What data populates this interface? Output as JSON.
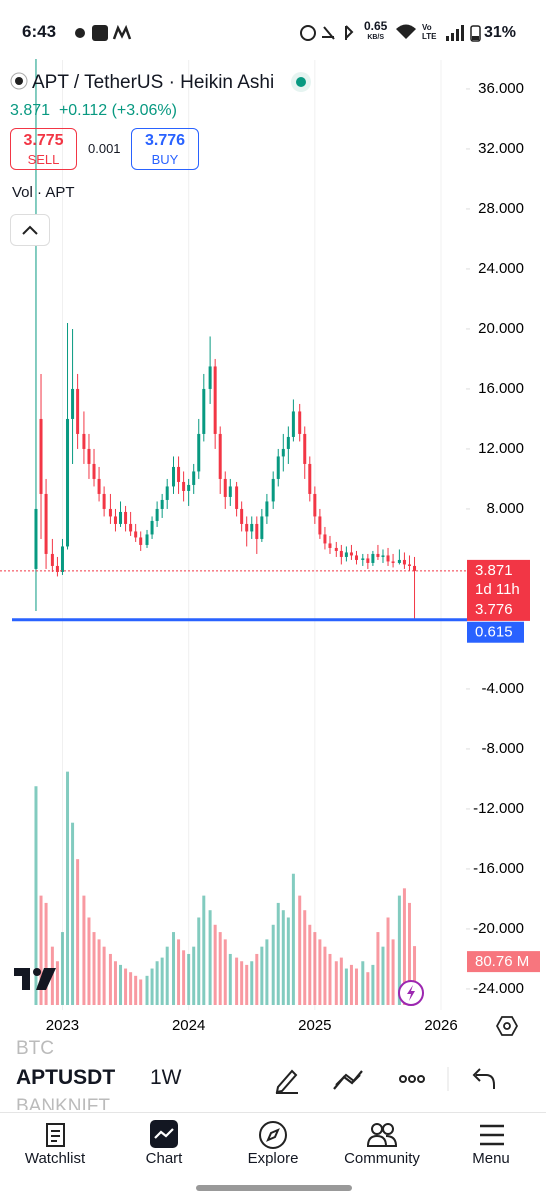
{
  "status_bar": {
    "time": "6:43",
    "speed": "0.65",
    "speed_unit": "KB/S",
    "network": "Vo LTE",
    "battery": "31%"
  },
  "header": {
    "symbol": "APT / TetherUS · Heikin Ashi",
    "change": "+0.112 (+3.06%)",
    "sell": {
      "price": "3.775",
      "label": "SELL"
    },
    "spread": "0.001",
    "buy": {
      "price": "3.776",
      "label": "BUY"
    },
    "volume_indicator": "Vol · APT",
    "countdown": "1d 11h"
  },
  "chart_data": {
    "type": "candlestick",
    "x": [
      2022.79,
      2022.83,
      2022.87,
      2022.92,
      2022.96,
      2023.0,
      2023.04,
      2023.08,
      2023.12,
      2023.17,
      2023.21,
      2023.25,
      2023.29,
      2023.33,
      2023.38,
      2023.42,
      2023.46,
      2023.5,
      2023.54,
      2023.58,
      2023.62,
      2023.67,
      2023.71,
      2023.75,
      2023.79,
      2023.83,
      2023.88,
      2023.92,
      2023.96,
      2024.0,
      2024.04,
      2024.08,
      2024.12,
      2024.17,
      2024.21,
      2024.25,
      2024.29,
      2024.33,
      2024.38,
      2024.42,
      2024.46,
      2024.5,
      2024.54,
      2024.58,
      2024.62,
      2024.67,
      2024.71,
      2024.75,
      2024.79,
      2024.83,
      2024.88,
      2024.92,
      2024.96,
      2025.0,
      2025.04,
      2025.08,
      2025.12,
      2025.17,
      2025.21,
      2025.25,
      2025.29,
      2025.33,
      2025.38,
      2025.42,
      2025.46,
      2025.5,
      2025.54,
      2025.58,
      2025.62,
      2025.67,
      2025.71,
      2025.75,
      2025.79
    ],
    "open": [
      4,
      14,
      9,
      5,
      4.2,
      3.8,
      5.5,
      14,
      16,
      13,
      12,
      11,
      10,
      9,
      8,
      7.5,
      7,
      7.8,
      7,
      6.5,
      6.1,
      5.6,
      6.3,
      7.2,
      8,
      8.6,
      9.5,
      10.8,
      9.8,
      9.2,
      9.6,
      10.5,
      13,
      16,
      17.5,
      13,
      10,
      8.8,
      9.5,
      8,
      7,
      6.5,
      7,
      6,
      7.5,
      8.5,
      10,
      11.5,
      12,
      12.8,
      14.5,
      13,
      11,
      9,
      7.5,
      6.3,
      5.7,
      5.4,
      5.2,
      4.8,
      5.1,
      4.9,
      4.6,
      4.7,
      4.4,
      5,
      4.8,
      4.9,
      4.5,
      4.4,
      4.6,
      4.3,
      4.2
    ],
    "high": [
      38,
      17,
      10,
      6,
      4.8,
      6,
      20.4,
      20,
      17,
      14.5,
      13,
      12,
      10.8,
      9.5,
      9,
      8,
      8.5,
      8.2,
      7.8,
      7,
      6.5,
      6.6,
      7.5,
      8.5,
      9,
      10,
      11.5,
      11.5,
      10.5,
      10,
      11,
      14,
      17,
      19.5,
      18,
      13.5,
      10.5,
      10,
      9.8,
      8.5,
      7.5,
      7.5,
      7.5,
      8,
      9,
      10.5,
      12,
      13,
      13.5,
      15.3,
      15,
      13.5,
      11.5,
      9.5,
      8,
      6.8,
      6.2,
      5.8,
      5.6,
      5.5,
      5.6,
      5.2,
      5,
      5,
      5.2,
      5.6,
      5.3,
      5.4,
      5,
      5.3,
      5.1,
      4.9,
      4.8
    ],
    "low": [
      1.2,
      6,
      4,
      3.8,
      3.5,
      3.6,
      5.3,
      11,
      12,
      11,
      10,
      9.5,
      8.5,
      7.5,
      7,
      6.5,
      6.8,
      6.5,
      6.2,
      5.8,
      5.2,
      5.4,
      6,
      6.8,
      7.4,
      8,
      9,
      9,
      8.5,
      8.2,
      9,
      10,
      12.5,
      15,
      12,
      9,
      8,
      8.2,
      7.5,
      6.5,
      5.5,
      6,
      5,
      5.8,
      7,
      8,
      9.5,
      10.5,
      11,
      12.5,
      12.5,
      10,
      8.5,
      7,
      6,
      5.3,
      5,
      4.8,
      4.3,
      4.5,
      4.6,
      4.3,
      4.2,
      4,
      4.2,
      4.6,
      4.4,
      4.2,
      4.1,
      4.3,
      4,
      3.9,
      0.7
    ],
    "close": [
      8,
      9,
      5,
      4.2,
      3.8,
      5.5,
      14,
      16,
      13,
      12,
      11,
      10,
      9,
      8,
      7.5,
      7,
      7.8,
      7,
      6.5,
      6.1,
      5.6,
      6.3,
      7.2,
      8,
      8.6,
      9.5,
      10.8,
      9.8,
      9.2,
      9.6,
      10.5,
      13,
      16,
      17.5,
      13,
      10,
      8.8,
      9.5,
      8,
      7,
      6.5,
      7,
      6,
      7.5,
      8.5,
      10,
      11.5,
      12,
      12.8,
      14.5,
      13,
      11,
      9,
      7.5,
      6.3,
      5.7,
      5.4,
      5.2,
      4.8,
      5.1,
      4.9,
      4.6,
      4.7,
      4.4,
      5,
      4.8,
      4.9,
      4.5,
      4.4,
      4.6,
      4.3,
      4.2,
      3.871
    ],
    "volume": [
      300,
      150,
      140,
      80,
      60,
      100,
      320,
      250,
      200,
      150,
      120,
      100,
      90,
      80,
      70,
      60,
      55,
      50,
      45,
      40,
      35,
      40,
      50,
      60,
      65,
      80,
      100,
      90,
      75,
      70,
      80,
      120,
      150,
      130,
      110,
      100,
      90,
      70,
      65,
      60,
      55,
      60,
      70,
      80,
      90,
      110,
      140,
      130,
      120,
      180,
      150,
      130,
      110,
      100,
      90,
      80,
      70,
      60,
      65,
      50,
      55,
      50,
      60,
      45,
      55,
      100,
      80,
      120,
      90,
      150,
      160,
      140,
      80.76
    ],
    "volume_label": "80.76 M",
    "vlim": [
      0,
      325
    ],
    "up_color": "#089981",
    "down_color": "#f23645",
    "horizontal_line": 0.615,
    "line_color": "#2962ff",
    "xlim": [
      2022.6,
      2026.19
    ],
    "xticks": [
      2023,
      2024,
      2025,
      2026
    ],
    "ylim": [
      -25.07,
      37.93
    ],
    "yticks": [
      {
        "value": 36,
        "label": "36.000"
      },
      {
        "value": 32,
        "label": "32.000"
      },
      {
        "value": 28,
        "label": "28.000"
      },
      {
        "value": 24,
        "label": "24.000"
      },
      {
        "value": 20,
        "label": "20.000"
      },
      {
        "value": 16,
        "label": "16.000"
      },
      {
        "value": 12,
        "label": "12.000"
      },
      {
        "value": 8,
        "label": "8.000"
      },
      {
        "value": -4,
        "label": "-4.000"
      },
      {
        "value": -8,
        "label": "-8.000"
      },
      {
        "value": -12,
        "label": "-12.000"
      },
      {
        "value": -16,
        "label": "-16.000"
      },
      {
        "value": -20,
        "label": "-20.000"
      },
      {
        "value": -24,
        "label": "-24.000"
      }
    ]
  },
  "toolbar": {
    "prev_symbol": "BTC",
    "symbol": "APTUSDT",
    "interval": "1W",
    "next_symbol": "BANKNIFT"
  },
  "nav": [
    "Watchlist",
    "Chart",
    "Explore",
    "Community",
    "Menu"
  ]
}
